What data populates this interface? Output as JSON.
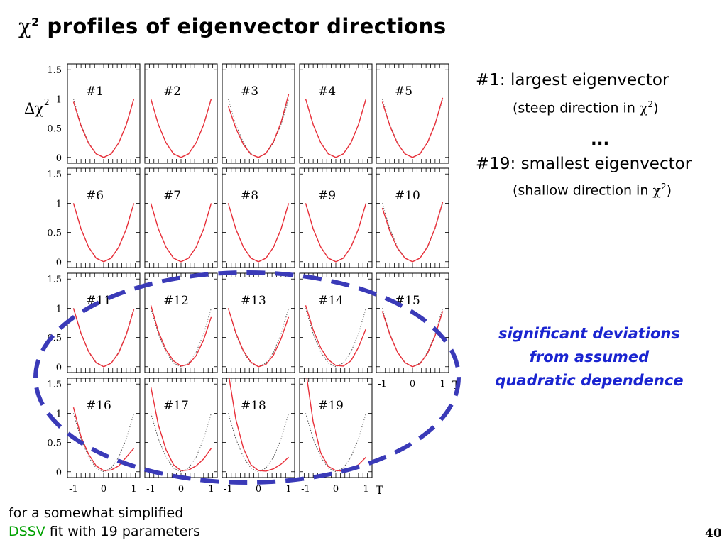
{
  "slide": {
    "title_symbol": "χ",
    "title_sup": "2",
    "title_text": " profiles of eigenvector directions",
    "note1_main": "#1: largest eigenvector",
    "note1_sub": "(steep direction in ",
    "note_sym": "χ",
    "note_sup": "2",
    "note_close": ")",
    "dots": "...",
    "note2_main": "#19: smallest eigenvector",
    "note2_sub": "(shallow direction in ",
    "deviation_line1": "significant deviations",
    "deviation_line2": "from assumed",
    "deviation_line3": "quadratic dependence",
    "footnote_line1": "for a somewhat simplified",
    "footnote_dssv": "DSSV",
    "footnote_line2_rest": " fit with 19 parameters",
    "page_number": "40"
  },
  "chart_data": {
    "type": "line",
    "ylabel": "Δχ",
    "ylabel_sup": "2",
    "xlabel": "T",
    "xlim": [
      -1.2,
      1.2
    ],
    "ylim": [
      -0.1,
      1.6
    ],
    "x_ticks": [
      "-1",
      "0",
      "1"
    ],
    "y_ticks": [
      "0",
      "0.5",
      "1",
      "1.5"
    ],
    "x": [
      -1,
      -0.75,
      -0.5,
      -0.25,
      0,
      0.25,
      0.5,
      0.75,
      1
    ],
    "colors": {
      "fit": "#e8303a",
      "quadratic": "#555555",
      "highlight": "#3a3ab8"
    },
    "panels": [
      {
        "label": "#1",
        "quadratic": [
          1,
          0.5625,
          0.25,
          0.0625,
          0,
          0.0625,
          0.25,
          0.5625,
          1
        ],
        "fit": [
          0.95,
          0.54,
          0.24,
          0.06,
          0,
          0.06,
          0.25,
          0.56,
          1.0
        ]
      },
      {
        "label": "#2",
        "quadratic": [
          1,
          0.5625,
          0.25,
          0.0625,
          0,
          0.0625,
          0.25,
          0.5625,
          1
        ],
        "fit": [
          1.0,
          0.56,
          0.25,
          0.06,
          0,
          0.06,
          0.25,
          0.56,
          1.0
        ]
      },
      {
        "label": "#3",
        "quadratic": [
          1,
          0.5625,
          0.25,
          0.0625,
          0,
          0.0625,
          0.25,
          0.5625,
          1
        ],
        "fit": [
          0.88,
          0.5,
          0.22,
          0.05,
          0,
          0.07,
          0.27,
          0.6,
          1.08
        ]
      },
      {
        "label": "#4",
        "quadratic": [
          1,
          0.5625,
          0.25,
          0.0625,
          0,
          0.0625,
          0.25,
          0.5625,
          1
        ],
        "fit": [
          1.0,
          0.56,
          0.25,
          0.06,
          0,
          0.06,
          0.25,
          0.56,
          1.0
        ]
      },
      {
        "label": "#5",
        "quadratic": [
          1,
          0.5625,
          0.25,
          0.0625,
          0,
          0.0625,
          0.25,
          0.5625,
          1
        ],
        "fit": [
          0.95,
          0.54,
          0.24,
          0.06,
          0,
          0.06,
          0.26,
          0.57,
          1.02
        ]
      },
      {
        "label": "#6",
        "quadratic": [
          1,
          0.5625,
          0.25,
          0.0625,
          0,
          0.0625,
          0.25,
          0.5625,
          1
        ],
        "fit": [
          1.0,
          0.56,
          0.25,
          0.06,
          0,
          0.06,
          0.25,
          0.56,
          1.0
        ]
      },
      {
        "label": "#7",
        "quadratic": [
          1,
          0.5625,
          0.25,
          0.0625,
          0,
          0.0625,
          0.25,
          0.5625,
          1
        ],
        "fit": [
          1.0,
          0.56,
          0.25,
          0.06,
          0,
          0.06,
          0.25,
          0.56,
          1.0
        ]
      },
      {
        "label": "#8",
        "quadratic": [
          1,
          0.5625,
          0.25,
          0.0625,
          0,
          0.0625,
          0.25,
          0.5625,
          1
        ],
        "fit": [
          1.0,
          0.56,
          0.25,
          0.06,
          0,
          0.06,
          0.25,
          0.56,
          1.0
        ]
      },
      {
        "label": "#9",
        "quadratic": [
          1,
          0.5625,
          0.25,
          0.0625,
          0,
          0.0625,
          0.25,
          0.5625,
          1
        ],
        "fit": [
          1.0,
          0.56,
          0.25,
          0.06,
          0,
          0.06,
          0.25,
          0.56,
          1.0
        ]
      },
      {
        "label": "#10",
        "quadratic": [
          1,
          0.5625,
          0.25,
          0.0625,
          0,
          0.0625,
          0.25,
          0.5625,
          1
        ],
        "fit": [
          0.92,
          0.52,
          0.23,
          0.06,
          0,
          0.06,
          0.26,
          0.58,
          1.02
        ]
      },
      {
        "label": "#11",
        "quadratic": [
          1,
          0.5625,
          0.25,
          0.0625,
          0,
          0.0625,
          0.25,
          0.5625,
          1
        ],
        "fit": [
          1.0,
          0.57,
          0.26,
          0.07,
          0,
          0.06,
          0.24,
          0.55,
          0.98
        ]
      },
      {
        "label": "#12",
        "quadratic": [
          1,
          0.5625,
          0.25,
          0.0625,
          0,
          0.0625,
          0.25,
          0.5625,
          1
        ],
        "fit": [
          1.05,
          0.6,
          0.29,
          0.1,
          0.01,
          0.04,
          0.19,
          0.46,
          0.85
        ]
      },
      {
        "label": "#13",
        "quadratic": [
          1,
          0.5625,
          0.25,
          0.0625,
          0,
          0.0625,
          0.25,
          0.5625,
          1
        ],
        "fit": [
          1.0,
          0.58,
          0.27,
          0.08,
          0,
          0.04,
          0.2,
          0.48,
          0.85
        ]
      },
      {
        "label": "#14",
        "quadratic": [
          1,
          0.5625,
          0.25,
          0.0625,
          0,
          0.0625,
          0.25,
          0.5625,
          1
        ],
        "fit": [
          1.05,
          0.63,
          0.32,
          0.12,
          0.02,
          0.01,
          0.1,
          0.33,
          0.65
        ]
      },
      {
        "label": "#15",
        "quadratic": [
          1,
          0.5625,
          0.25,
          0.0625,
          0,
          0.0625,
          0.25,
          0.5625,
          1
        ],
        "fit": [
          0.95,
          0.55,
          0.25,
          0.07,
          0,
          0.05,
          0.23,
          0.53,
          0.95
        ]
      },
      {
        "label": "#16",
        "quadratic": [
          1,
          0.5625,
          0.25,
          0.0625,
          0,
          0.0625,
          0.25,
          0.5625,
          1
        ],
        "fit": [
          1.1,
          0.6,
          0.3,
          0.1,
          0.02,
          0.03,
          0.1,
          0.25,
          0.4
        ]
      },
      {
        "label": "#17",
        "quadratic": [
          1,
          0.5625,
          0.25,
          0.0625,
          0,
          0.0625,
          0.25,
          0.5625,
          1
        ],
        "fit": [
          1.45,
          0.8,
          0.38,
          0.12,
          0.02,
          0.03,
          0.1,
          0.22,
          0.4
        ]
      },
      {
        "label": "#18",
        "quadratic": [
          1,
          0.5625,
          0.25,
          0.0625,
          0,
          0.0625,
          0.25,
          0.5625,
          1
        ],
        "fit": [
          1.7,
          0.9,
          0.4,
          0.12,
          0.02,
          0.01,
          0.05,
          0.13,
          0.25
        ]
      },
      {
        "label": "#19",
        "quadratic": [
          1,
          0.5625,
          0.25,
          0.0625,
          0,
          0.0625,
          0.25,
          0.5625,
          1
        ],
        "fit": [
          1.75,
          0.85,
          0.32,
          0.09,
          0.02,
          0.01,
          0.05,
          0.12,
          0.25
        ]
      }
    ]
  }
}
